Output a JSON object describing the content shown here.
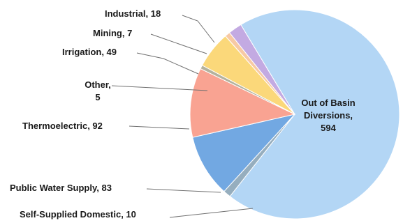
{
  "chart_data": {
    "type": "pie",
    "title": "",
    "start_angle_deg": -121,
    "direction": "clockwise",
    "slices": [
      {
        "label": "Out of Basin Diversions",
        "value": 594,
        "color": "#b3d6f5",
        "text_lines": [
          "Out of Basin",
          "Diversions,",
          "594"
        ]
      },
      {
        "label": "Self-Supplied Domestic",
        "value": 10,
        "color": "#96aebe",
        "text_lines": [
          "Self-Supplied Domestic, 10"
        ]
      },
      {
        "label": "Public Water Supply",
        "value": 83,
        "color": "#72a8e2",
        "text_lines": [
          "Public Water Supply, 83"
        ]
      },
      {
        "label": "Thermoelectric",
        "value": 92,
        "color": "#f9a392",
        "text_lines": [
          "Thermoelectric, 92"
        ]
      },
      {
        "label": "Other",
        "value": 5,
        "color": "#b4b29e",
        "text_lines": [
          "Other,",
          "5"
        ]
      },
      {
        "label": "Irrigation",
        "value": 49,
        "color": "#fbd87a",
        "text_lines": [
          "Irrigation, 49"
        ]
      },
      {
        "label": "Mining",
        "value": 7,
        "color": "#f7c9a4",
        "text_lines": [
          "Mining, 7"
        ]
      },
      {
        "label": "Industrial",
        "value": 18,
        "color": "#c3aae2",
        "text_lines": [
          "Industrial, 18"
        ]
      }
    ]
  }
}
